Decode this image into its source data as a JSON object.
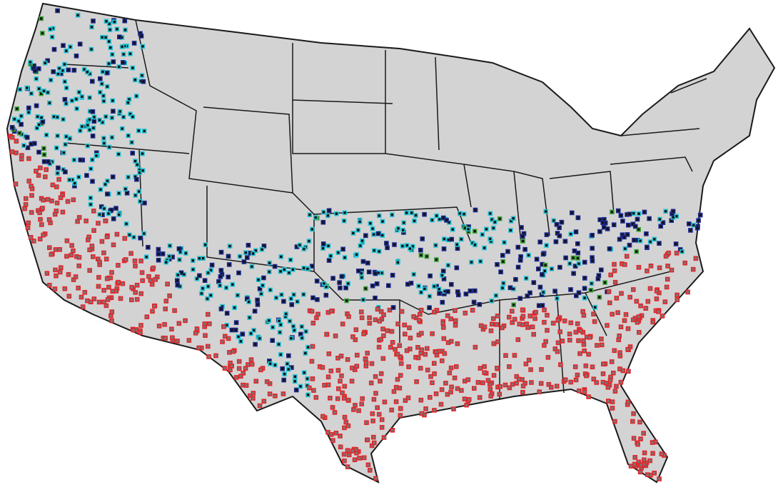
{
  "map": {
    "land_color": "#d3d3d3",
    "border_color": "#1a1a1a",
    "marker_colors": [
      "#e3262b",
      "#26c2d4",
      "#1e2b8c",
      "#3da43a"
    ]
  }
}
